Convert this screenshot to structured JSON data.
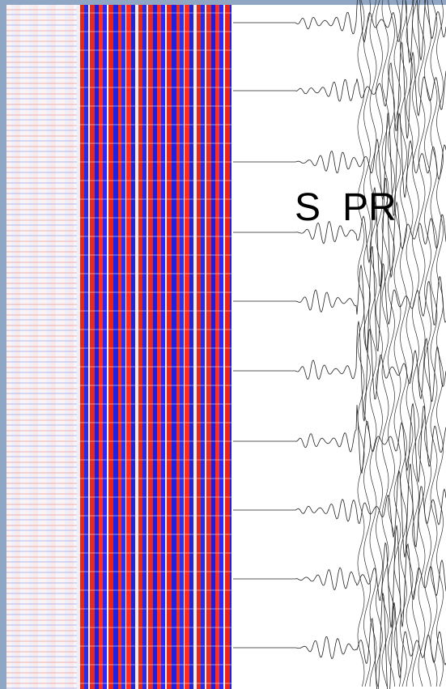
{
  "labels": [
    "S",
    "PR"
  ]
}
